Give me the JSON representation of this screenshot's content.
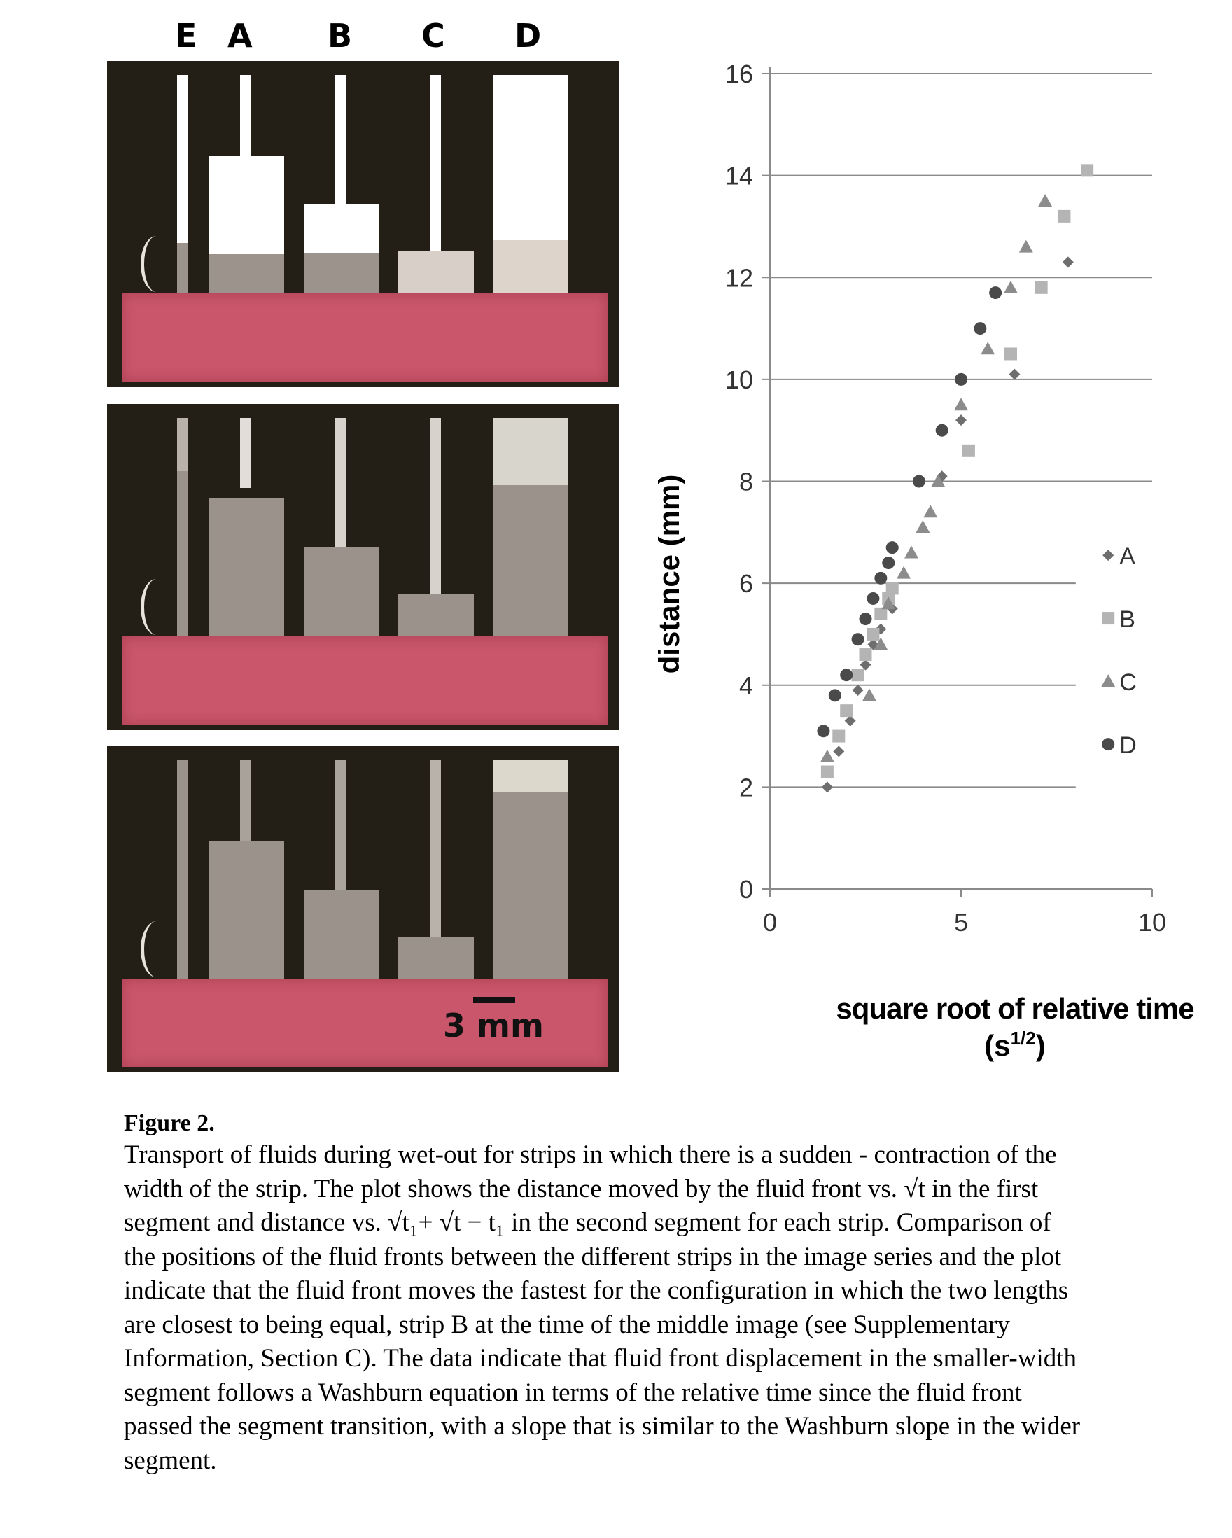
{
  "strip_labels": [
    "E",
    "A",
    "B",
    "C",
    "D"
  ],
  "scale_bar": {
    "label": "3 mm"
  },
  "chart_data": {
    "type": "scatter",
    "xlabel": "square root of relative time",
    "xlabel_units": "(s",
    "xlabel_exponent": "1/2",
    "xlabel_close": ")",
    "ylabel": "distance (mm)",
    "xlim": [
      0,
      10
    ],
    "ylim": [
      0,
      16
    ],
    "x_ticks": [
      "0",
      "5",
      "10"
    ],
    "y_ticks": [
      "0",
      "2",
      "4",
      "6",
      "8",
      "10",
      "12",
      "14",
      "16"
    ],
    "grid": "horizontal",
    "legend_position": "right",
    "series": [
      {
        "name": "A",
        "marker": "diamond",
        "color": "#6e6e6e",
        "points": [
          [
            1.5,
            2.0
          ],
          [
            1.8,
            2.7
          ],
          [
            2.1,
            3.3
          ],
          [
            2.3,
            3.9
          ],
          [
            2.5,
            4.4
          ],
          [
            2.7,
            4.8
          ],
          [
            2.9,
            5.1
          ],
          [
            3.2,
            5.5
          ],
          [
            4.5,
            8.1
          ],
          [
            5.0,
            9.2
          ],
          [
            6.4,
            10.1
          ],
          [
            7.8,
            12.3
          ]
        ]
      },
      {
        "name": "B",
        "marker": "square",
        "color": "#b4b4b4",
        "points": [
          [
            1.5,
            2.3
          ],
          [
            1.8,
            3.0
          ],
          [
            2.0,
            3.5
          ],
          [
            2.3,
            4.2
          ],
          [
            2.5,
            4.6
          ],
          [
            2.7,
            5.0
          ],
          [
            2.9,
            5.4
          ],
          [
            3.1,
            5.7
          ],
          [
            3.2,
            5.9
          ],
          [
            5.2,
            8.6
          ],
          [
            6.3,
            10.5
          ],
          [
            7.1,
            11.8
          ],
          [
            7.7,
            13.2
          ],
          [
            8.3,
            14.1
          ]
        ]
      },
      {
        "name": "C",
        "marker": "triangle",
        "color": "#8c8c8c",
        "points": [
          [
            1.5,
            2.6
          ],
          [
            2.6,
            3.8
          ],
          [
            2.9,
            4.8
          ],
          [
            3.1,
            5.6
          ],
          [
            3.5,
            6.2
          ],
          [
            3.7,
            6.6
          ],
          [
            4.0,
            7.1
          ],
          [
            4.2,
            7.4
          ],
          [
            4.4,
            8.0
          ],
          [
            5.0,
            9.5
          ],
          [
            5.7,
            10.6
          ],
          [
            6.3,
            11.8
          ],
          [
            6.7,
            12.6
          ],
          [
            7.2,
            13.5
          ]
        ]
      },
      {
        "name": "D",
        "marker": "circle",
        "color": "#4a4a4a",
        "points": [
          [
            1.4,
            3.1
          ],
          [
            1.7,
            3.8
          ],
          [
            2.0,
            4.2
          ],
          [
            2.3,
            4.9
          ],
          [
            2.5,
            5.3
          ],
          [
            2.7,
            5.7
          ],
          [
            2.9,
            6.1
          ],
          [
            3.1,
            6.4
          ],
          [
            3.2,
            6.7
          ],
          [
            3.9,
            8.0
          ],
          [
            4.5,
            9.0
          ],
          [
            5.0,
            10.0
          ],
          [
            5.5,
            11.0
          ],
          [
            5.9,
            11.7
          ]
        ]
      }
    ]
  },
  "caption": {
    "title": "Figure 2.",
    "lines": [
      "Transport of fluids during wet-out for strips in which there is a sudden - contraction of the",
      "width of the strip. The plot shows the distance moved by the fluid front vs. √t in the first",
      "segment and distance vs. √t₁+ √t − t₁ in the second segment for each strip. Comparison of",
      "the positions of the fluid fronts between the different strips in the image series and the plot",
      "indicate that the fluid front moves the fastest for the configuration in which the two lengths",
      "are closest to being equal, strip B at the time of the middle image (see Supplementary",
      "Information, Section C). The data indicate that fluid front displacement in the smaller-width",
      "segment follows a Washburn equation in terms of the relative time since the fluid front",
      "passed the segment transition, with a slope that is similar to the Washburn slope in the wider",
      "segment."
    ]
  }
}
